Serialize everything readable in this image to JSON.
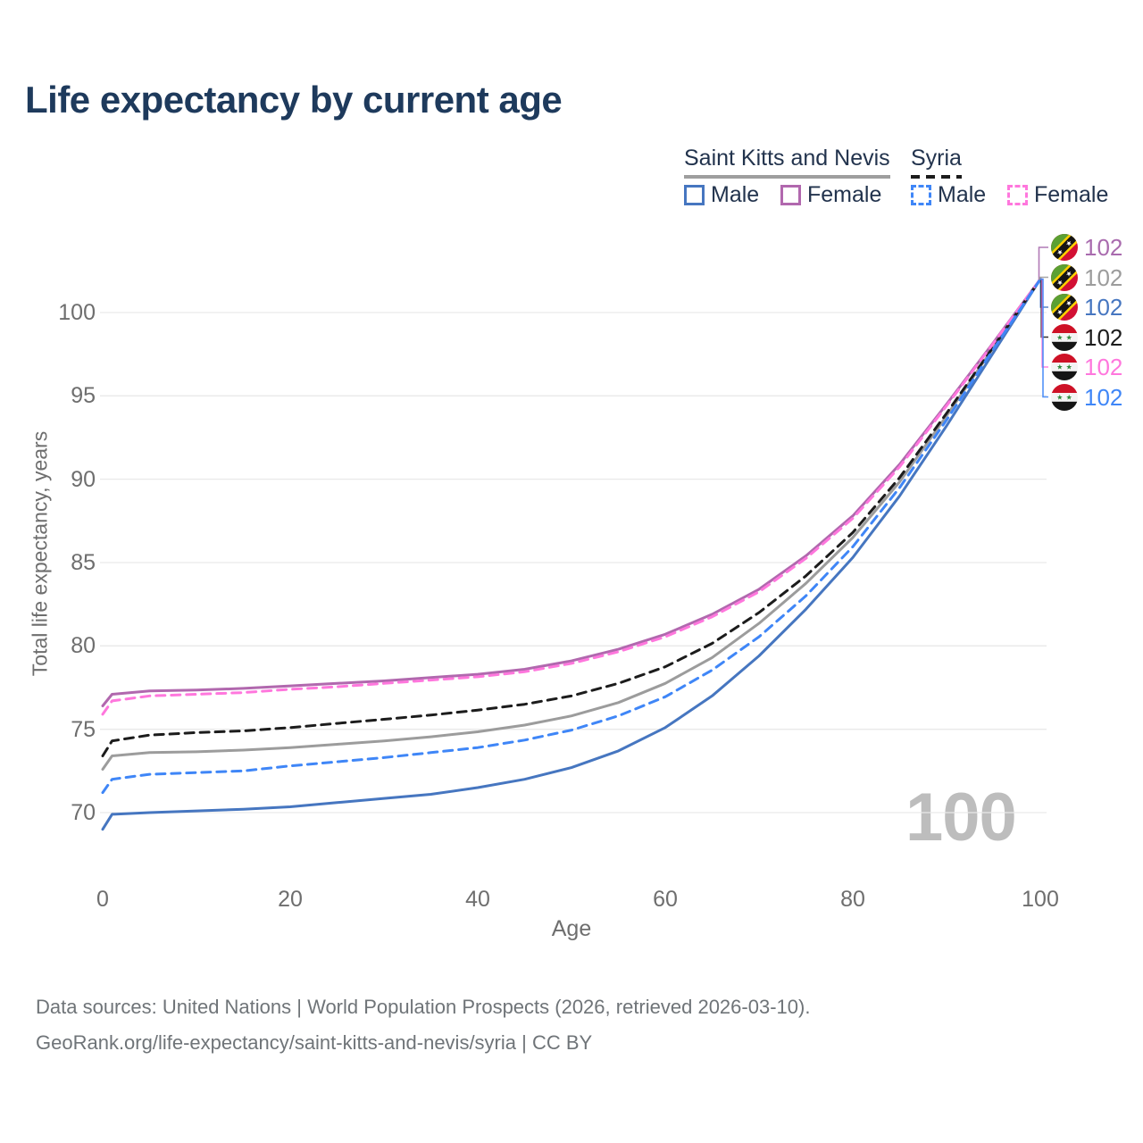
{
  "title": "Life expectancy by current age",
  "watermark": "100",
  "legend": {
    "groups": [
      {
        "label": "Saint Kitts and Nevis",
        "line_style": "solid",
        "underline_color": "#9e9e9e"
      },
      {
        "label": "Syria",
        "line_style": "dashed",
        "underline_color": "#1c1c1c"
      }
    ],
    "items": [
      {
        "group": "Saint Kitts and Nevis",
        "label": "Male",
        "color": "#4676c0",
        "style": "solid"
      },
      {
        "group": "Saint Kitts and Nevis",
        "label": "Female",
        "color": "#b168ae",
        "style": "solid"
      },
      {
        "group": "Syria",
        "label": "Male",
        "color": "#3f86f7",
        "style": "dashed"
      },
      {
        "group": "Syria",
        "label": "Female",
        "color": "#ff77dd",
        "style": "dashed"
      }
    ]
  },
  "chart_data": {
    "type": "line",
    "title": "Life expectancy by current age",
    "xlabel": "Age",
    "ylabel": "Total life expectancy, years",
    "x_ticks": [
      0,
      20,
      40,
      60,
      80,
      100
    ],
    "y_ticks": [
      70,
      75,
      80,
      85,
      90,
      95,
      100
    ],
    "xlim": [
      0,
      100
    ],
    "ylim": [
      67.5,
      103
    ],
    "grid": "horizontal",
    "x": [
      0,
      1,
      5,
      10,
      15,
      20,
      25,
      30,
      35,
      40,
      45,
      50,
      55,
      60,
      65,
      70,
      75,
      80,
      85,
      90,
      95,
      100
    ],
    "series": [
      {
        "id": "skn-female",
        "country": "Saint Kitts and Nevis",
        "sex": "Female",
        "line": "solid",
        "color": "#b168ae",
        "values": [
          76.4,
          77.1,
          77.3,
          77.35,
          77.45,
          77.6,
          77.75,
          77.9,
          78.1,
          78.3,
          78.6,
          79.1,
          79.8,
          80.7,
          81.9,
          83.4,
          85.4,
          87.8,
          90.9,
          94.5,
          98.2,
          102
        ]
      },
      {
        "id": "skn-combined",
        "country": "Saint Kitts and Nevis",
        "sex": "Both sexes",
        "line": "solid",
        "color": "#9c9c9c",
        "values": [
          72.6,
          73.4,
          73.6,
          73.65,
          73.75,
          73.9,
          74.1,
          74.3,
          74.55,
          74.85,
          75.25,
          75.8,
          76.6,
          77.75,
          79.3,
          81.35,
          83.75,
          86.5,
          89.85,
          93.8,
          97.9,
          102
        ]
      },
      {
        "id": "skn-male",
        "country": "Saint Kitts and Nevis",
        "sex": "Male",
        "line": "solid",
        "color": "#4676c0",
        "values": [
          69.0,
          69.9,
          70.0,
          70.1,
          70.2,
          70.35,
          70.6,
          70.85,
          71.1,
          71.5,
          72.0,
          72.7,
          73.7,
          75.1,
          77.0,
          79.4,
          82.2,
          85.3,
          89.0,
          93.2,
          97.6,
          102
        ]
      },
      {
        "id": "syria-combined",
        "country": "Syria",
        "sex": "Both sexes",
        "line": "dashed",
        "color": "#1c1c1c",
        "values": [
          73.4,
          74.3,
          74.65,
          74.8,
          74.9,
          75.1,
          75.35,
          75.6,
          75.85,
          76.15,
          76.5,
          77.0,
          77.75,
          78.75,
          80.15,
          82.0,
          84.2,
          86.8,
          90.1,
          93.95,
          97.95,
          102
        ]
      },
      {
        "id": "syria-female",
        "country": "Syria",
        "sex": "Female",
        "line": "dashed",
        "color": "#ff77dd",
        "values": [
          75.9,
          76.7,
          77.0,
          77.1,
          77.2,
          77.4,
          77.55,
          77.75,
          77.95,
          78.15,
          78.45,
          78.95,
          79.65,
          80.55,
          81.75,
          83.25,
          85.25,
          87.65,
          90.75,
          94.4,
          98.15,
          102
        ]
      },
      {
        "id": "syria-male",
        "country": "Syria",
        "sex": "Male",
        "line": "dashed",
        "color": "#3f86f7",
        "values": [
          71.2,
          72.0,
          72.3,
          72.4,
          72.5,
          72.8,
          73.05,
          73.3,
          73.6,
          73.9,
          74.35,
          74.95,
          75.8,
          76.95,
          78.55,
          80.55,
          83.0,
          85.95,
          89.5,
          93.55,
          97.8,
          102
        ]
      }
    ],
    "end_labels": [
      {
        "series": "skn-female",
        "flag": "saint-kitts-and-nevis",
        "value": "102",
        "color": "#a96bae"
      },
      {
        "series": "skn-combined",
        "flag": "saint-kitts-and-nevis",
        "value": "102",
        "color": "#9c9c9c"
      },
      {
        "series": "skn-male",
        "flag": "saint-kitts-and-nevis",
        "value": "102",
        "color": "#4676c0"
      },
      {
        "series": "syria-combined",
        "flag": "syria",
        "value": "102",
        "color": "#1c1c1c"
      },
      {
        "series": "syria-female",
        "flag": "syria",
        "value": "102",
        "color": "#ff77dd"
      },
      {
        "series": "syria-male",
        "flag": "syria",
        "value": "102",
        "color": "#3f86f7"
      }
    ]
  },
  "footer": {
    "line1": "Data sources: United Nations | World Population Prospects (2026, retrieved 2026-03-10).",
    "line2": "GeoRank.org/life-expectancy/saint-kitts-and-nevis/syria | CC BY"
  }
}
